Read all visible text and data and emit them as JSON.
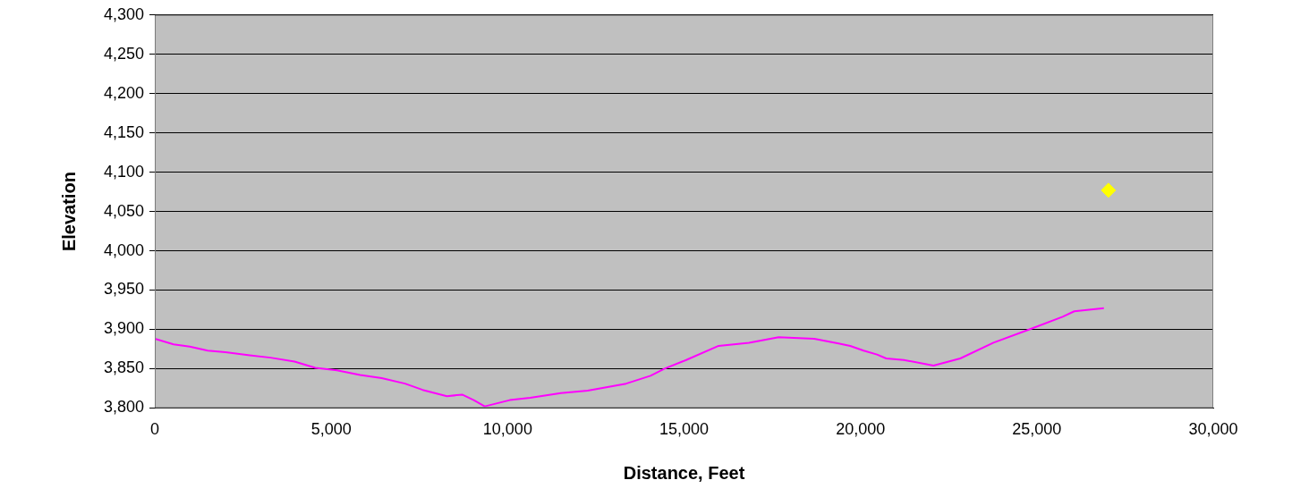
{
  "chart_data": {
    "type": "line",
    "xlabel": "Distance, Feet",
    "ylabel": "Elevation",
    "xlim": [
      0,
      30000
    ],
    "xticks": [
      {
        "value": 0,
        "label": "0"
      },
      {
        "value": 5000,
        "label": "5,000"
      },
      {
        "value": 10000,
        "label": "10,000"
      },
      {
        "value": 15000,
        "label": "15,000"
      },
      {
        "value": 20000,
        "label": "20,000"
      },
      {
        "value": 25000,
        "label": "25,000"
      },
      {
        "value": 30000,
        "label": "30,000"
      }
    ],
    "ylim": [
      3800,
      4300
    ],
    "yticks": [
      {
        "value": 3800,
        "label": "3,800"
      },
      {
        "value": 3850,
        "label": "3,850"
      },
      {
        "value": 3900,
        "label": "3,900"
      },
      {
        "value": 3950,
        "label": "3,950"
      },
      {
        "value": 4000,
        "label": "4,000"
      },
      {
        "value": 4050,
        "label": "4,050"
      },
      {
        "value": 4100,
        "label": "4,100"
      },
      {
        "value": 4150,
        "label": "4,150"
      },
      {
        "value": 4200,
        "label": "4,200"
      },
      {
        "value": 4250,
        "label": "4,250"
      },
      {
        "value": 4300,
        "label": "4,300"
      }
    ],
    "grid": "y",
    "legend": false,
    "series": [
      {
        "type": "line",
        "color": "#ff00ff",
        "marker": "none",
        "x": [
          0,
          533,
          990,
          1500,
          2000,
          2690,
          3280,
          3960,
          4550,
          5160,
          5820,
          6430,
          7090,
          7590,
          8280,
          8710,
          9040,
          9350,
          10060,
          10640,
          11510,
          12270,
          13360,
          14050,
          14450,
          15060,
          15980,
          16840,
          17680,
          18690,
          19380,
          19710,
          20090,
          20470,
          20730,
          21230,
          22070,
          22830,
          23770,
          24790,
          25730,
          26060,
          26900
        ],
        "values": [
          3888,
          3881,
          3878,
          3873,
          3871,
          3867,
          3864,
          3859,
          3851,
          3848,
          3842,
          3838,
          3831,
          3823,
          3815,
          3817,
          3810,
          3802,
          3810,
          3813,
          3819,
          3822,
          3831,
          3841,
          3850,
          3861,
          3879,
          3883,
          3890,
          3888,
          3882,
          3879,
          3873,
          3868,
          3863,
          3861,
          3854,
          3863,
          3883,
          3900,
          3916,
          3923,
          3927
        ]
      },
      {
        "type": "scatter",
        "color": "#ffff00",
        "marker": "diamond",
        "x": [
          27030
        ],
        "values": [
          4077
        ]
      }
    ]
  }
}
